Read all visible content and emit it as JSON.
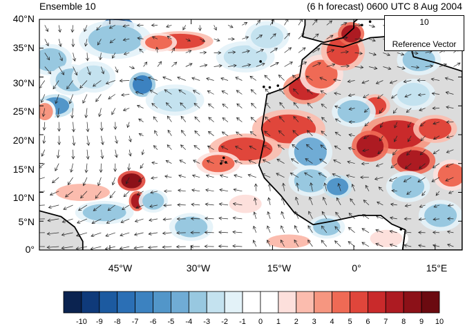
{
  "title_left": "Ensemble 10",
  "title_right": "(6 h forecast) 0600 UTC 8 Aug 2004",
  "reference_vector": {
    "magnitude": "10",
    "label": "Reference Vector"
  },
  "lat_ticks": [
    "40°N",
    "35°N",
    "30°N",
    "25°N",
    "20°N",
    "15°N",
    "10°N",
    "5°N",
    "0°"
  ],
  "lon_ticks": [
    "45°W",
    "30°W",
    "15°W",
    "0°",
    "15°E"
  ],
  "colorbar": {
    "tick_labels": [
      "-10",
      "-9",
      "-8",
      "-7",
      "-6",
      "-5",
      "-4",
      "-3",
      "-2",
      "-1",
      "0",
      "1",
      "2",
      "3",
      "4",
      "5",
      "6",
      "7",
      "8",
      "9",
      "10"
    ],
    "colors": [
      "#0b2350",
      "#0f3a7a",
      "#1c5aa0",
      "#2b6fb5",
      "#3c82c0",
      "#5296c9",
      "#70acd5",
      "#98c8e0",
      "#c4e2ef",
      "#e3f2f8",
      "#ffffff",
      "#ffffff",
      "#fde0dc",
      "#fbbcae",
      "#f69680",
      "#ef6a55",
      "#e0463b",
      "#c92a2b",
      "#ad1b22",
      "#8c1118",
      "#6b0a10"
    ]
  },
  "map": {
    "lon_range": [
      -58,
      20
    ],
    "lat_range": [
      0,
      40
    ],
    "land_fill_color": "#dcdcdc",
    "coast_color": "#000000",
    "anomaly_blobs": [
      {
        "lon": -43.5,
        "lat": 38.8,
        "rx": 2.2,
        "ry": 1.2,
        "v": -10
      },
      {
        "lon": -44,
        "lat": 36.5,
        "rx": 5,
        "ry": 2.5,
        "v": -3
      },
      {
        "lon": -56,
        "lat": 33,
        "rx": 3,
        "ry": 2,
        "v": -3
      },
      {
        "lon": -52,
        "lat": 29.5,
        "rx": 3,
        "ry": 2,
        "v": -3
      },
      {
        "lon": -48,
        "lat": 30,
        "rx": 3,
        "ry": 2,
        "v": -2
      },
      {
        "lon": -55,
        "lat": 25,
        "rx": 2.5,
        "ry": 1.5,
        "v": -5
      },
      {
        "lon": -39,
        "lat": 28.7,
        "rx": 1.8,
        "ry": 1.6,
        "v": -6
      },
      {
        "lon": -33,
        "lat": 26,
        "rx": 4,
        "ry": 2,
        "v": -2
      },
      {
        "lon": -57,
        "lat": 24,
        "rx": 1.5,
        "ry": 1.5,
        "v": 4
      },
      {
        "lon": -32,
        "lat": 36.2,
        "rx": 4.5,
        "ry": 1.3,
        "v": 6
      },
      {
        "lon": -36,
        "lat": 36,
        "rx": 2.5,
        "ry": 1.2,
        "v": 5
      },
      {
        "lon": -20,
        "lat": 33.5,
        "rx": 4,
        "ry": 2,
        "v": -2
      },
      {
        "lon": -16,
        "lat": 37,
        "rx": 3,
        "ry": 2,
        "v": -2
      },
      {
        "lon": -9,
        "lat": 28,
        "rx": 3,
        "ry": 2,
        "v": 7
      },
      {
        "lon": -6,
        "lat": 30.5,
        "rx": 3,
        "ry": 2.5,
        "v": 5
      },
      {
        "lon": -2,
        "lat": 34.5,
        "rx": 3,
        "ry": 2.5,
        "v": 6
      },
      {
        "lon": -0.5,
        "lat": 37.5,
        "rx": 1.8,
        "ry": 1.5,
        "v": 8
      },
      {
        "lon": 4,
        "lat": 25,
        "rx": 2,
        "ry": 1.5,
        "v": 6
      },
      {
        "lon": 12,
        "lat": 33,
        "rx": 3,
        "ry": 2,
        "v": -3
      },
      {
        "lon": 11,
        "lat": 27,
        "rx": 3,
        "ry": 2,
        "v": -2
      },
      {
        "lon": 8,
        "lat": 20,
        "rx": 5,
        "ry": 2.5,
        "v": 7
      },
      {
        "lon": 3,
        "lat": 18,
        "rx": 2.5,
        "ry": 2,
        "v": 8
      },
      {
        "lon": 11,
        "lat": 15.5,
        "rx": 3,
        "ry": 1.8,
        "v": 8
      },
      {
        "lon": 15,
        "lat": 21,
        "rx": 3,
        "ry": 1.8,
        "v": 6
      },
      {
        "lon": 18,
        "lat": 13,
        "rx": 2.5,
        "ry": 2,
        "v": 5
      },
      {
        "lon": -12,
        "lat": 21,
        "rx": 5,
        "ry": 2.5,
        "v": 6
      },
      {
        "lon": -20,
        "lat": 17.5,
        "rx": 5,
        "ry": 2,
        "v": 6
      },
      {
        "lon": -25,
        "lat": 15,
        "rx": 3,
        "ry": 1.5,
        "v": 5
      },
      {
        "lon": -8,
        "lat": 17,
        "rx": 3,
        "ry": 2.5,
        "v": -4
      },
      {
        "lon": -8,
        "lat": 12,
        "rx": 3,
        "ry": 2,
        "v": -3
      },
      {
        "lon": 0,
        "lat": 24,
        "rx": 3,
        "ry": 2,
        "v": -3
      },
      {
        "lon": -3,
        "lat": 11,
        "rx": 2,
        "ry": 1.5,
        "v": -5
      },
      {
        "lon": 10,
        "lat": 11,
        "rx": 3,
        "ry": 2,
        "v": -3
      },
      {
        "lon": 16,
        "lat": 6,
        "rx": 3,
        "ry": 2,
        "v": -3
      },
      {
        "lon": -41,
        "lat": 12,
        "rx": 1.9,
        "ry": 1.3,
        "v": 9
      },
      {
        "lon": -40,
        "lat": 8.5,
        "rx": 1.1,
        "ry": 1.3,
        "v": 8
      },
      {
        "lon": -37,
        "lat": 8.5,
        "rx": 2,
        "ry": 1.5,
        "v": -3
      },
      {
        "lon": -50,
        "lat": 10,
        "rx": 5,
        "ry": 1.5,
        "v": 3
      },
      {
        "lon": -46,
        "lat": 6.5,
        "rx": 4,
        "ry": 1.5,
        "v": -3
      },
      {
        "lon": -30,
        "lat": 4,
        "rx": 3,
        "ry": 1.8,
        "v": -3
      },
      {
        "lon": -20,
        "lat": 8,
        "rx": 3,
        "ry": 1.6,
        "v": 2
      },
      {
        "lon": -12,
        "lat": 1.5,
        "rx": 4,
        "ry": 1.2,
        "v": 3
      },
      {
        "lon": 6,
        "lat": 2,
        "rx": 3,
        "ry": 1.5,
        "v": 2
      },
      {
        "lon": -5,
        "lat": 4,
        "rx": 2.5,
        "ry": 1.5,
        "v": -3
      }
    ],
    "vector_field_rings": [
      {
        "lon": -44,
        "lat": 27,
        "strength": 1.1,
        "sense": 1
      },
      {
        "lon": -56,
        "lat": 14,
        "strength": 0.8,
        "sense": -1
      },
      {
        "lon": 4,
        "lat": 13,
        "strength": 0.6,
        "sense": -1
      },
      {
        "lon": -20,
        "lat": 36,
        "strength": 0.7,
        "sense": 1
      },
      {
        "lon": 11,
        "lat": 30,
        "strength": 0.5,
        "sense": 1
      }
    ]
  }
}
